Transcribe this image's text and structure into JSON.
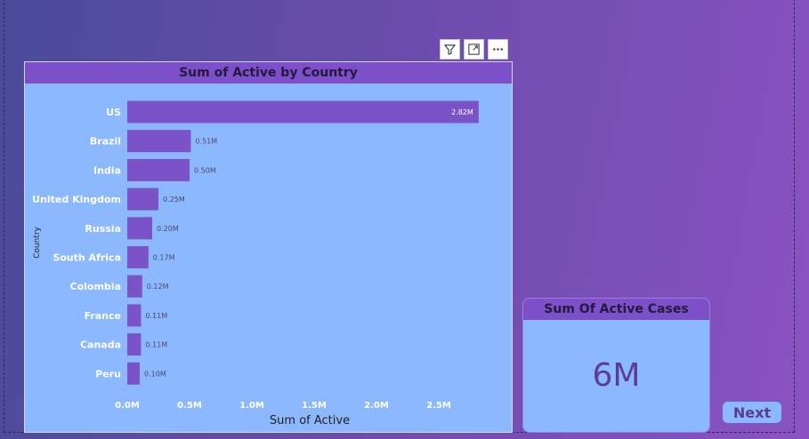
{
  "toolbar": {
    "filter_icon": "filter-icon",
    "focus_icon": "focus-mode-icon",
    "more_icon": "more-options-icon"
  },
  "kpi": {
    "title": "Sum Of Active Cases",
    "value": "6M"
  },
  "next_button": {
    "label": "Next"
  },
  "colors": {
    "bar": "#7b52c8",
    "card_bg": "#8cb8ff",
    "header_bg": "#7d4fc9"
  },
  "chart_data": {
    "type": "bar",
    "orientation": "horizontal",
    "title": "Sum of Active by Country",
    "xlabel": "Sum of Active",
    "ylabel": "Country",
    "categories": [
      "US",
      "Brazil",
      "India",
      "United Kingdom",
      "Russia",
      "South Africa",
      "Colombia",
      "France",
      "Canada",
      "Peru"
    ],
    "values": [
      2.82,
      0.51,
      0.5,
      0.25,
      0.2,
      0.17,
      0.12,
      0.11,
      0.11,
      0.1
    ],
    "data_labels": [
      "2.82M",
      "0.51M",
      "0.50M",
      "0.25M",
      "0.20M",
      "0.17M",
      "0.12M",
      "0.11M",
      "0.11M",
      "0.10M"
    ],
    "value_unit": "M",
    "xlim": [
      0,
      2.8
    ],
    "xticks": [
      0,
      0.5,
      1.0,
      1.5,
      2.0,
      2.5
    ],
    "xtick_labels": [
      "0.0M",
      "0.5M",
      "1.0M",
      "1.5M",
      "2.0M",
      "2.5M"
    ],
    "grid": false,
    "legend": "none"
  }
}
